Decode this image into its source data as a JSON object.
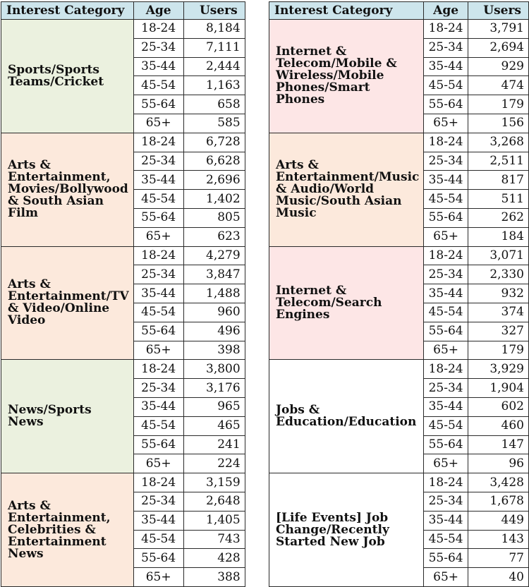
{
  "headers": {
    "category": "Interest Category",
    "age": "Age",
    "users": "Users"
  },
  "colors": {
    "header": "#cde5ec",
    "green": "#ebf1df",
    "orange": "#fce9dc",
    "pink": "#fde6e6",
    "white": "#ffffff"
  },
  "left": [
    {
      "name": "Sports/Sports Teams/Cricket",
      "color": "green",
      "rows": [
        [
          "18-24",
          "8,184"
        ],
        [
          "25-34",
          "7,111"
        ],
        [
          "35-44",
          "2,444"
        ],
        [
          "45-54",
          "1,163"
        ],
        [
          "55-64",
          "658"
        ],
        [
          "65+",
          "585"
        ]
      ]
    },
    {
      "name": "Arts & Entertainment, Movies/Bollywood & South Asian Film",
      "color": "orange",
      "rows": [
        [
          "18-24",
          "6,728"
        ],
        [
          "25-34",
          "6,628"
        ],
        [
          "35-44",
          "2,696"
        ],
        [
          "45-54",
          "1,402"
        ],
        [
          "55-64",
          "805"
        ],
        [
          "65+",
          "623"
        ]
      ]
    },
    {
      "name": "Arts & Entertainment/TV & Video/Online Video",
      "color": "orange",
      "rows": [
        [
          "18-24",
          "4,279"
        ],
        [
          "25-34",
          "3,847"
        ],
        [
          "35-44",
          "1,488"
        ],
        [
          "45-54",
          "960"
        ],
        [
          "55-64",
          "496"
        ],
        [
          "65+",
          "398"
        ]
      ]
    },
    {
      "name": "News/Sports News",
      "color": "green",
      "rows": [
        [
          "18-24",
          "3,800"
        ],
        [
          "25-34",
          "3,176"
        ],
        [
          "35-44",
          "965"
        ],
        [
          "45-54",
          "465"
        ],
        [
          "55-64",
          "241"
        ],
        [
          "65+",
          "224"
        ]
      ]
    },
    {
      "name": "Arts & Entertainment, Celebrities & Entertainment News",
      "color": "orange",
      "rows": [
        [
          "18-24",
          "3,159"
        ],
        [
          "25-34",
          "2,648"
        ],
        [
          "35-44",
          "1,405"
        ],
        [
          "45-54",
          "743"
        ],
        [
          "55-64",
          "428"
        ],
        [
          "65+",
          "388"
        ]
      ]
    }
  ],
  "right": [
    {
      "name": "Internet & Telecom/Mobile & Wireless/Mobile Phones/Smart Phones",
      "color": "pink",
      "rows": [
        [
          "18-24",
          "3,791"
        ],
        [
          "25-34",
          "2,694"
        ],
        [
          "35-44",
          "929"
        ],
        [
          "45-54",
          "474"
        ],
        [
          "55-64",
          "179"
        ],
        [
          "65+",
          "156"
        ]
      ]
    },
    {
      "name": "Arts & Entertainment/Music & Audio/World Music/South Asian Music",
      "color": "orange",
      "rows": [
        [
          "18-24",
          "3,268"
        ],
        [
          "25-34",
          "2,511"
        ],
        [
          "35-44",
          "817"
        ],
        [
          "45-54",
          "511"
        ],
        [
          "55-64",
          "262"
        ],
        [
          "65+",
          "184"
        ]
      ]
    },
    {
      "name": "Internet & Telecom/Search Engines",
      "color": "pink",
      "rows": [
        [
          "18-24",
          "3,071"
        ],
        [
          "25-34",
          "2,330"
        ],
        [
          "35-44",
          "932"
        ],
        [
          "45-54",
          "374"
        ],
        [
          "55-64",
          "327"
        ],
        [
          "65+",
          "179"
        ]
      ]
    },
    {
      "name": "Jobs & Education/Education",
      "color": "white",
      "rows": [
        [
          "18-24",
          "3,929"
        ],
        [
          "25-34",
          "1,904"
        ],
        [
          "35-44",
          "602"
        ],
        [
          "45-54",
          "460"
        ],
        [
          "55-64",
          "147"
        ],
        [
          "65+",
          "96"
        ]
      ]
    },
    {
      "name": "[Life Events] Job Change/Recently Started New Job",
      "color": "white",
      "rows": [
        [
          "18-24",
          "3,428"
        ],
        [
          "25-34",
          "1,678"
        ],
        [
          "35-44",
          "449"
        ],
        [
          "45-54",
          "143"
        ],
        [
          "55-64",
          "77"
        ],
        [
          "65+",
          "40"
        ]
      ]
    }
  ]
}
